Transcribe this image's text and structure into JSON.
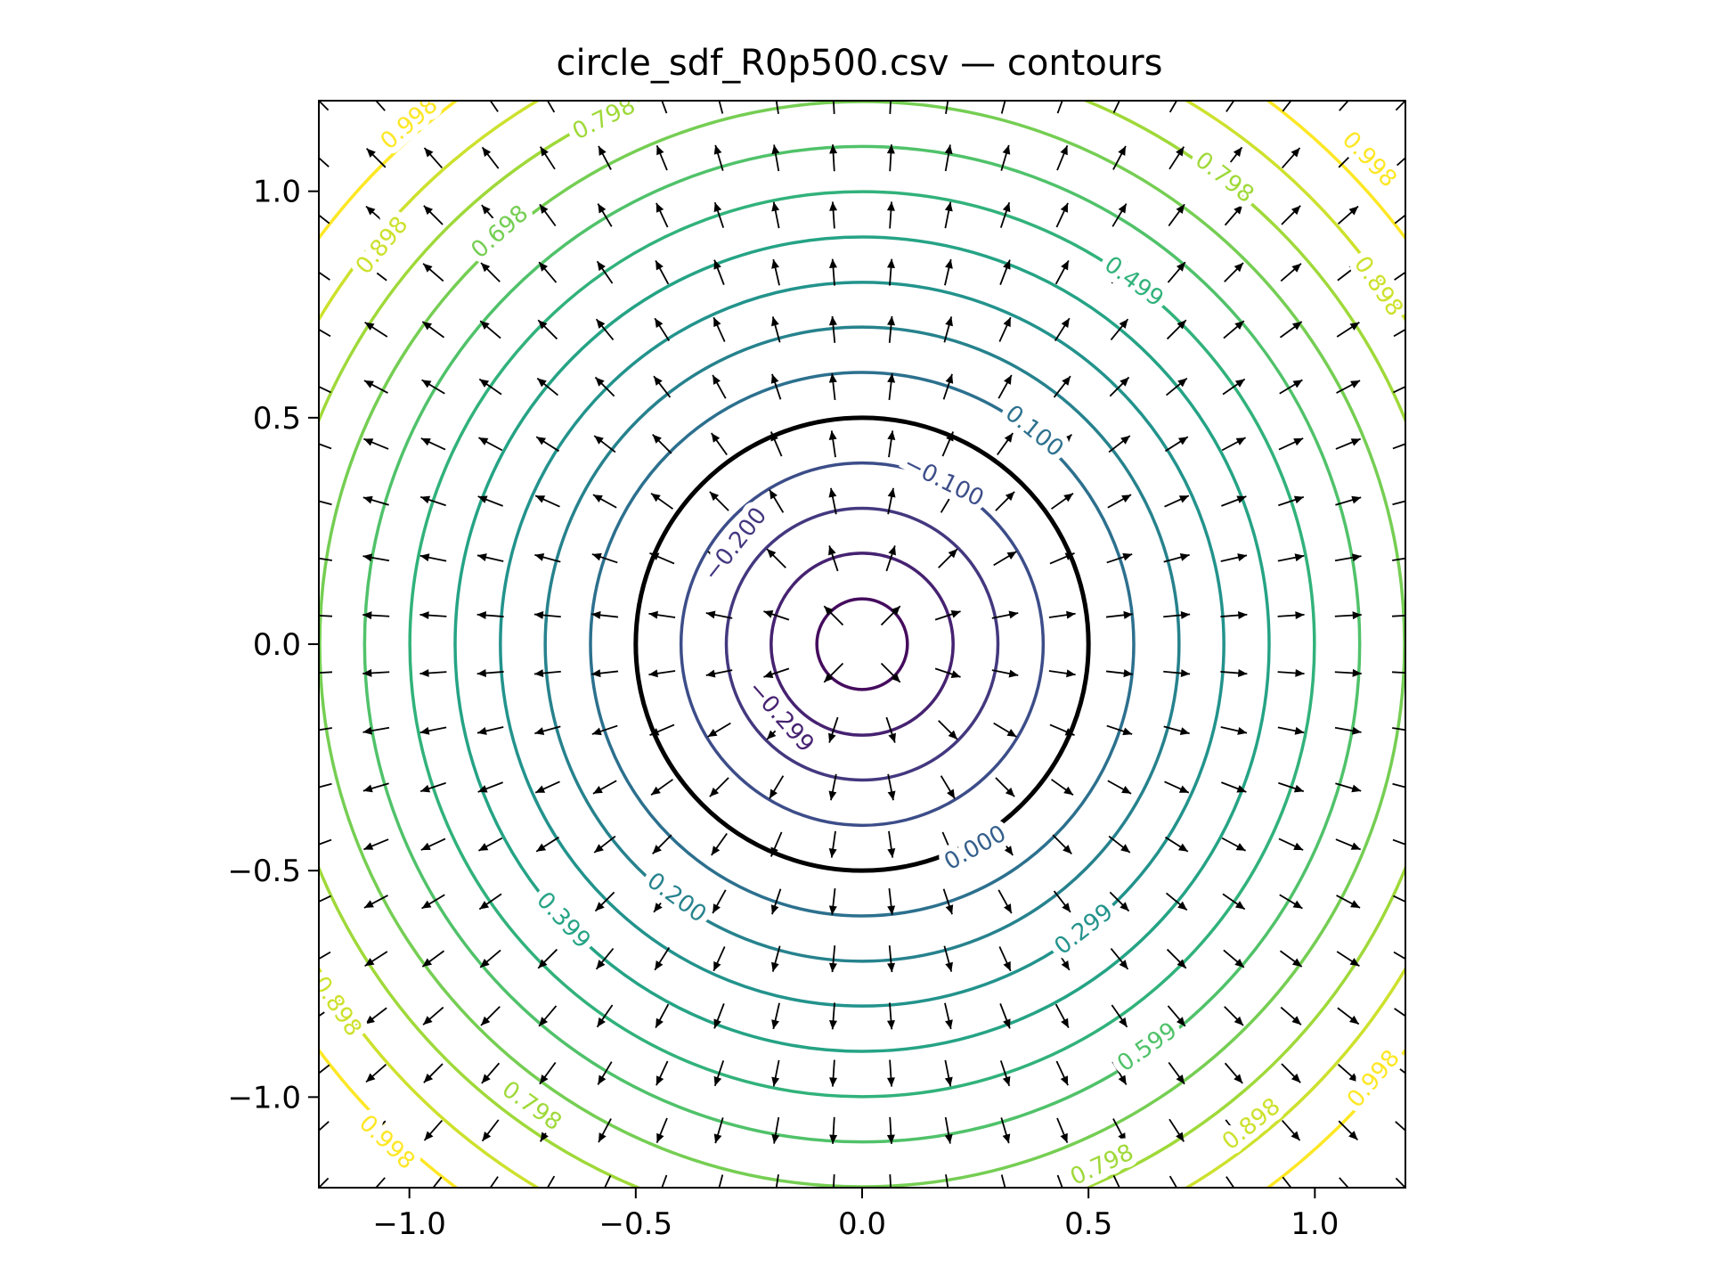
{
  "chart_data": {
    "type": "contour",
    "title": "circle_sdf_R0p500.csv — contours",
    "xlabel": "",
    "ylabel": "",
    "xlim": [
      -1.2,
      1.2
    ],
    "ylim": [
      -1.2,
      1.2
    ],
    "x_ticks": [
      -1.0,
      -0.5,
      0.0,
      0.5,
      1.0
    ],
    "y_ticks": [
      -1.0,
      -0.5,
      0.0,
      0.5,
      1.0
    ],
    "x_tick_labels": [
      "−1.0",
      "−0.5",
      "0.0",
      "0.5",
      "1.0"
    ],
    "y_tick_labels": [
      "−1.0",
      "−0.5",
      "0.0",
      "0.5",
      "1.0"
    ],
    "grid": false,
    "field": "signed distance to circle",
    "circle_radius": 0.5,
    "contour_levels": [
      -0.4,
      -0.299,
      -0.2,
      -0.1,
      0.0,
      0.1,
      0.2,
      0.299,
      0.399,
      0.499,
      0.599,
      0.698,
      0.798,
      0.898,
      0.998
    ],
    "zero_level_color": "#000000",
    "colormap": "viridis",
    "contour_labels": [
      {
        "text": "0.998",
        "x": -1.0,
        "y": 1.15
      },
      {
        "text": "0.798",
        "x": -0.57,
        "y": 1.16
      },
      {
        "text": "0.898",
        "x": -1.06,
        "y": 0.88
      },
      {
        "text": "0.698",
        "x": -0.8,
        "y": 0.91
      },
      {
        "text": "0.798",
        "x": 0.8,
        "y": 1.03
      },
      {
        "text": "0.998",
        "x": 1.12,
        "y": 1.07
      },
      {
        "text": "0.499",
        "x": 0.6,
        "y": 0.8
      },
      {
        "text": "0.898",
        "x": 1.14,
        "y": 0.79
      },
      {
        "text": "0.100",
        "x": 0.38,
        "y": 0.47
      },
      {
        "text": "−0.100",
        "x": 0.18,
        "y": 0.36
      },
      {
        "text": "−0.200",
        "x": -0.28,
        "y": 0.22
      },
      {
        "text": "−0.299",
        "x": -0.18,
        "y": -0.16
      },
      {
        "text": "0.000",
        "x": 0.25,
        "y": -0.45
      },
      {
        "text": "0.200",
        "x": -0.41,
        "y": -0.56
      },
      {
        "text": "0.399",
        "x": -0.66,
        "y": -0.61
      },
      {
        "text": "0.299",
        "x": 0.49,
        "y": -0.63
      },
      {
        "text": "0.898",
        "x": -1.16,
        "y": -0.8
      },
      {
        "text": "0.599",
        "x": 0.63,
        "y": -0.89
      },
      {
        "text": "0.998",
        "x": -1.05,
        "y": -1.1
      },
      {
        "text": "0.798",
        "x": -0.73,
        "y": -1.02
      },
      {
        "text": "0.898",
        "x": 0.86,
        "y": -1.06
      },
      {
        "text": "0.998",
        "x": 1.13,
        "y": -0.96
      },
      {
        "text": "0.798",
        "x": 0.53,
        "y": -1.15
      }
    ],
    "gradient_field": {
      "type": "quiver",
      "grid_x": {
        "start": -1.2,
        "stop": 1.2,
        "count": 20
      },
      "grid_y": {
        "start": -1.2,
        "stop": 1.2,
        "count": 20
      },
      "direction": "radial outward (unit gradient of distance)",
      "color": "#000000"
    }
  }
}
